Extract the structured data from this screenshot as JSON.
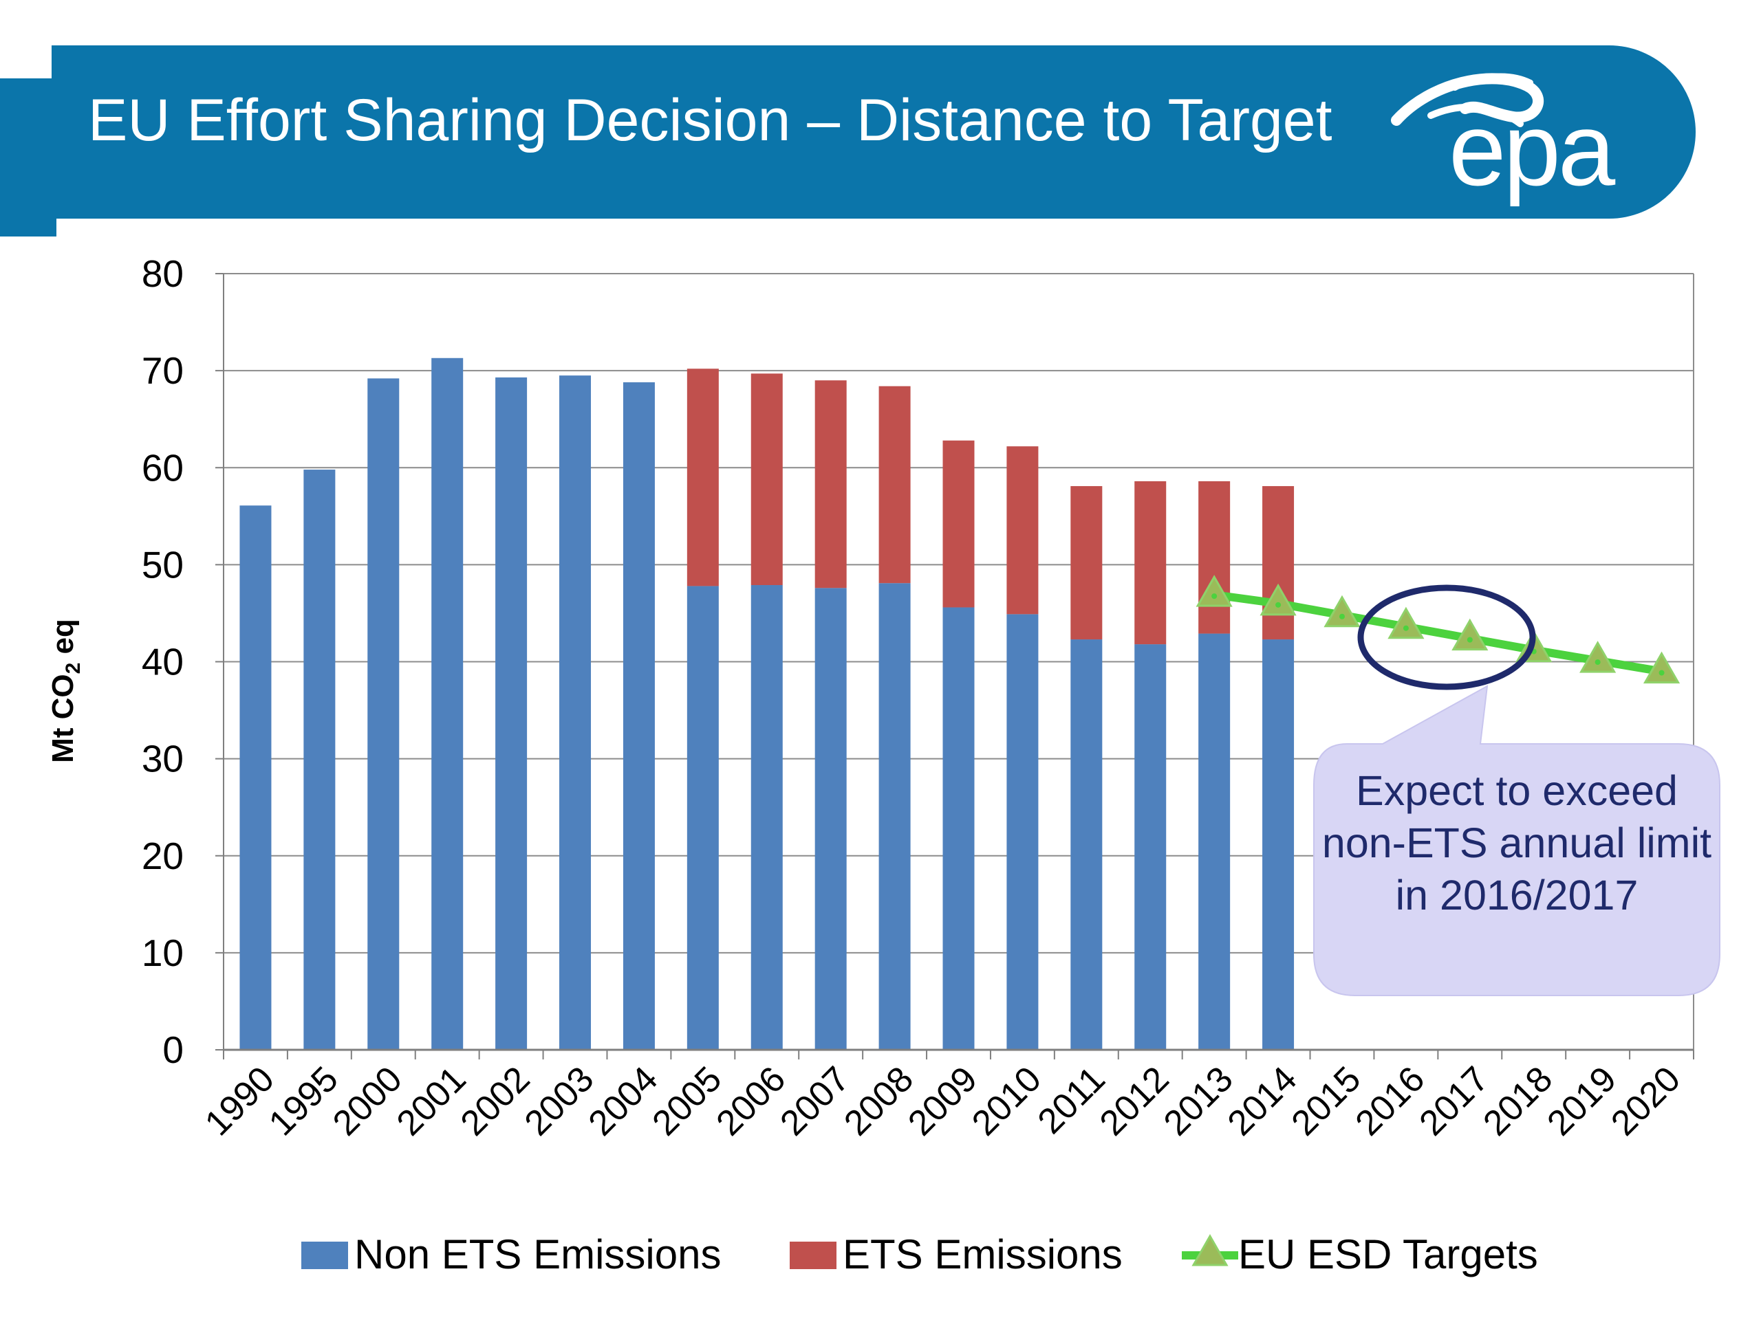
{
  "slide": {
    "title": "EU Effort Sharing Decision – Distance to Target",
    "logo_text": "epa"
  },
  "colors": {
    "banner": "#0b75aa",
    "non_ets": "#4f81bd",
    "ets": "#c0504d",
    "target_line": "#4cd23e",
    "target_marker": "#9bbb59",
    "ellipse": "#1f2a6b",
    "callout_fill": "#d8d6f5"
  },
  "chart_data": {
    "type": "bar",
    "stacked": true,
    "categories": [
      "1990",
      "1995",
      "2000",
      "2001",
      "2002",
      "2003",
      "2004",
      "2005",
      "2006",
      "2007",
      "2008",
      "2009",
      "2010",
      "2011",
      "2012",
      "2013",
      "2014",
      "2015",
      "2016",
      "2017",
      "2018",
      "2019",
      "2020"
    ],
    "series": [
      {
        "name": "Non ETS Emissions",
        "type": "bar",
        "values": [
          56.1,
          59.8,
          69.2,
          71.3,
          69.3,
          69.5,
          68.8,
          47.8,
          47.9,
          47.6,
          48.1,
          45.6,
          44.9,
          42.3,
          41.8,
          42.9,
          42.3,
          null,
          null,
          null,
          null,
          null,
          null
        ]
      },
      {
        "name": "ETS Emissions",
        "type": "bar",
        "values": [
          null,
          null,
          null,
          null,
          null,
          null,
          null,
          22.4,
          21.8,
          21.4,
          20.3,
          17.2,
          17.3,
          15.8,
          16.8,
          15.7,
          15.8,
          null,
          null,
          null,
          null,
          null,
          null
        ]
      },
      {
        "name": "EU ESD Targets",
        "type": "line",
        "values": [
          null,
          null,
          null,
          null,
          null,
          null,
          null,
          null,
          null,
          null,
          null,
          null,
          null,
          null,
          null,
          46.9,
          46.0,
          44.8,
          43.6,
          42.4,
          41.2,
          40.1,
          39.0
        ]
      }
    ],
    "ylabel": "Mt CO2 eq",
    "ylim": [
      0,
      80
    ],
    "yticks": [
      0,
      10,
      20,
      30,
      40,
      50,
      60,
      70,
      80
    ],
    "grid": true,
    "legend": "bottom",
    "annotations": [
      {
        "text": "Expect to exceed non-ETS annual limit in 2016/2017",
        "highlight": [
          "2016",
          "2017"
        ]
      }
    ]
  }
}
